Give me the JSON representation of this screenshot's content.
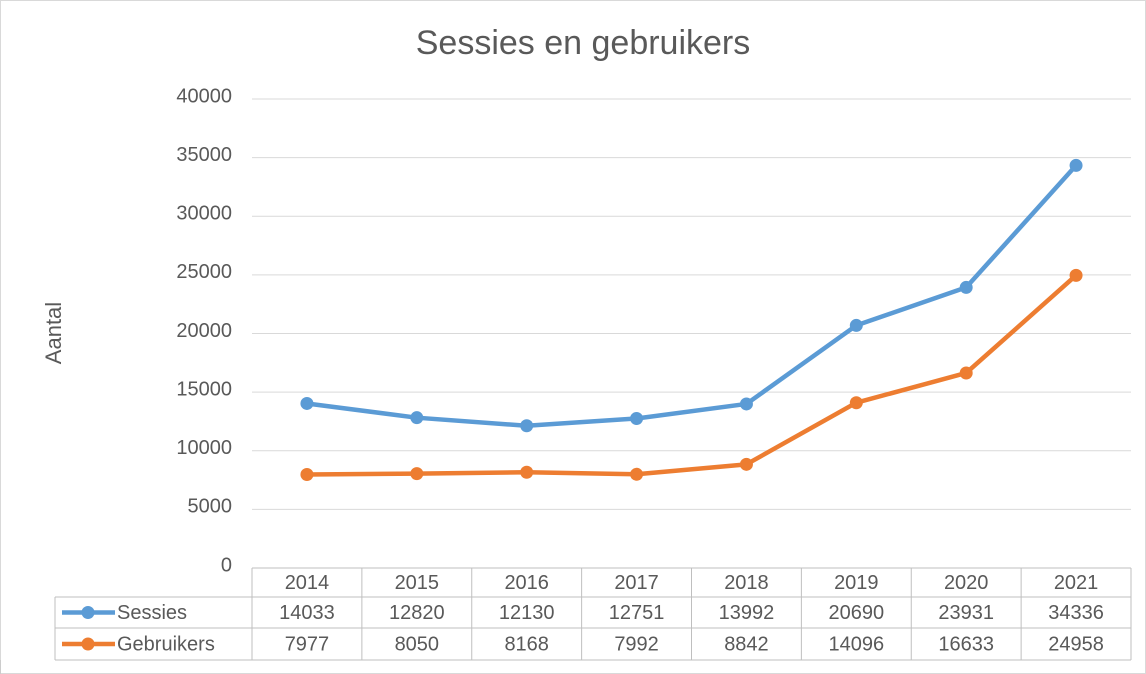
{
  "chart_data": {
    "type": "line",
    "title": "Sessies en gebruikers",
    "y_label": "Aantal",
    "categories": [
      "2014",
      "2015",
      "2016",
      "2017",
      "2018",
      "2019",
      "2020",
      "2021"
    ],
    "series": [
      {
        "name": "Sessies",
        "color": "#5b9bd5",
        "values": [
          14033,
          12820,
          12130,
          12751,
          13992,
          20690,
          23931,
          34336
        ]
      },
      {
        "name": "Gebruikers",
        "color": "#ed7d31",
        "values": [
          7977,
          8050,
          8168,
          7992,
          8842,
          14096,
          16633,
          24958
        ]
      }
    ],
    "ylim": [
      0,
      40000
    ],
    "yticks": [
      0,
      5000,
      10000,
      15000,
      20000,
      25000,
      30000,
      35000,
      40000
    ],
    "grid": true,
    "data_table": true
  }
}
